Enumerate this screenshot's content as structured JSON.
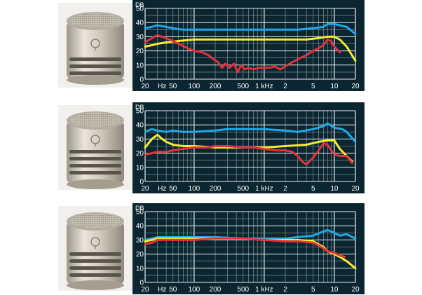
{
  "colors": {
    "panel_bg": "#0b2630",
    "grid": "#8fa1a8",
    "grid_major": "#e9eef0",
    "blue": "#1fa9e9",
    "yellow": "#f4ec2a",
    "red": "#e4323a"
  },
  "icons": {
    "mic_capsule": "microphone-capsule-icon"
  },
  "chart_data": [
    {
      "type": "line",
      "xscale": "log",
      "xlim": [
        20,
        20000
      ],
      "ylim": [
        0,
        50
      ],
      "ylabel": "DB",
      "y_ticks": [
        "0",
        "10",
        "20",
        "30",
        "40",
        "50"
      ],
      "x_ticks": [
        {
          "v": 20,
          "t": "20"
        },
        {
          "v": 35,
          "t": "Hz"
        },
        {
          "v": 50,
          "t": "50"
        },
        {
          "v": 100,
          "t": "100"
        },
        {
          "v": 200,
          "t": "200"
        },
        {
          "v": 500,
          "t": "500"
        },
        {
          "v": 1000,
          "t": "1 kHz"
        },
        {
          "v": 2000,
          "t": "2"
        },
        {
          "v": 5000,
          "t": "5"
        },
        {
          "v": 10000,
          "t": "10"
        },
        {
          "v": 20000,
          "t": "20"
        }
      ],
      "grid": true,
      "series": [
        {
          "color": "blue",
          "x": [
            20,
            25,
            30,
            40,
            50,
            70,
            100,
            200,
            500,
            1000,
            2000,
            3000,
            5000,
            7000,
            8000,
            10000,
            12000,
            15000,
            20000
          ],
          "y": [
            36,
            37,
            38,
            37,
            36,
            35,
            35,
            35,
            35,
            35,
            35,
            35,
            36,
            37,
            39,
            39,
            38,
            37,
            32
          ]
        },
        {
          "color": "yellow",
          "x": [
            20,
            25,
            30,
            40,
            60,
            100,
            200,
            500,
            1000,
            2000,
            4000,
            6000,
            8000,
            10000,
            12000,
            15000,
            20000
          ],
          "y": [
            23,
            24,
            25,
            26,
            27,
            28,
            28,
            28,
            28,
            28,
            28,
            29,
            30,
            30,
            28,
            23,
            13
          ]
        },
        {
          "color": "red",
          "x": [
            20,
            25,
            30,
            35,
            45,
            60,
            80,
            100,
            130,
            160,
            190,
            220,
            250,
            280,
            320,
            370,
            420,
            470,
            520,
            600,
            700,
            850,
            1000,
            1200,
            1400,
            1700,
            2000,
            2500,
            3000,
            4000,
            5000,
            6000,
            7000,
            8000,
            9000,
            10000,
            12000
          ],
          "y": [
            26,
            29,
            31,
            30,
            28,
            25,
            22,
            20,
            19,
            17,
            14,
            12,
            8,
            11,
            8,
            11,
            5,
            10,
            7,
            8,
            7,
            8,
            8,
            8,
            9,
            7,
            9,
            12,
            14,
            17,
            20,
            22,
            24,
            28,
            27,
            23,
            19
          ]
        }
      ]
    },
    {
      "type": "line",
      "xscale": "log",
      "xlim": [
        20,
        20000
      ],
      "ylim": [
        0,
        50
      ],
      "ylabel": "DB",
      "y_ticks": [
        "0",
        "10",
        "20",
        "30",
        "40",
        "50"
      ],
      "x_ticks": [
        {
          "v": 20,
          "t": "20"
        },
        {
          "v": 35,
          "t": "Hz"
        },
        {
          "v": 50,
          "t": "50"
        },
        {
          "v": 100,
          "t": "100"
        },
        {
          "v": 200,
          "t": "200"
        },
        {
          "v": 500,
          "t": "500"
        },
        {
          "v": 1000,
          "t": "1 kHz"
        },
        {
          "v": 2000,
          "t": "2"
        },
        {
          "v": 5000,
          "t": "5"
        },
        {
          "v": 10000,
          "t": "10"
        },
        {
          "v": 20000,
          "t": "20"
        }
      ],
      "grid": true,
      "series": [
        {
          "color": "blue",
          "x": [
            20,
            25,
            30,
            40,
            50,
            70,
            100,
            200,
            300,
            500,
            1000,
            2000,
            3000,
            5000,
            7000,
            8000,
            10000,
            13000,
            15000,
            20000
          ],
          "y": [
            35,
            37,
            36,
            35,
            36,
            35,
            35,
            36,
            37,
            37,
            37,
            36,
            35,
            37,
            39,
            41,
            38,
            37,
            35,
            28
          ]
        },
        {
          "color": "yellow",
          "x": [
            20,
            25,
            30,
            35,
            40,
            50,
            70,
            100,
            200,
            500,
            1000,
            2000,
            4000,
            6000,
            8000,
            10000,
            12000,
            15000,
            18000
          ],
          "y": [
            24,
            30,
            33,
            30,
            28,
            26,
            25,
            25,
            24,
            24,
            24,
            25,
            26,
            28,
            29,
            29,
            23,
            18,
            14
          ]
        },
        {
          "color": "red",
          "x": [
            20,
            25,
            30,
            40,
            50,
            70,
            100,
            150,
            200,
            300,
            500,
            700,
            1000,
            1500,
            2000,
            2500,
            3000,
            3500,
            4000,
            5000,
            6000,
            7000,
            8000,
            9000,
            10000,
            12000,
            15000,
            18000
          ],
          "y": [
            19,
            20,
            21,
            21,
            22,
            23,
            24,
            24,
            25,
            25,
            24,
            24,
            23,
            22,
            22,
            21,
            18,
            14,
            12,
            17,
            22,
            27,
            26,
            22,
            19,
            18,
            18,
            13
          ]
        }
      ]
    },
    {
      "type": "line",
      "xscale": "log",
      "xlim": [
        20,
        20000
      ],
      "ylim": [
        0,
        50
      ],
      "ylabel": "DB",
      "y_ticks": [
        "0",
        "10",
        "20",
        "30",
        "40",
        "50"
      ],
      "x_ticks": [
        {
          "v": 20,
          "t": "20"
        },
        {
          "v": 35,
          "t": "Hz"
        },
        {
          "v": 50,
          "t": "50"
        },
        {
          "v": 100,
          "t": "100"
        },
        {
          "v": 200,
          "t": "200"
        },
        {
          "v": 500,
          "t": "500"
        },
        {
          "v": 1000,
          "t": "1 kHz"
        },
        {
          "v": 2000,
          "t": "2"
        },
        {
          "v": 5000,
          "t": "5"
        },
        {
          "v": 10000,
          "t": "10"
        },
        {
          "v": 20000,
          "t": "20"
        }
      ],
      "grid": true,
      "series": [
        {
          "color": "blue",
          "x": [
            20,
            25,
            30,
            50,
            100,
            200,
            500,
            1000,
            2000,
            3000,
            5000,
            7000,
            8000,
            10000,
            12000,
            15000,
            20000
          ],
          "y": [
            30,
            31,
            32,
            32,
            32,
            32,
            31,
            31,
            31,
            32,
            33,
            36,
            37,
            35,
            33,
            34,
            31
          ]
        },
        {
          "color": "yellow",
          "x": [
            20,
            25,
            30,
            50,
            100,
            200,
            500,
            1000,
            2000,
            3000,
            5000,
            7000,
            8000,
            10000,
            12000,
            15000,
            20000
          ],
          "y": [
            29,
            30,
            31,
            31,
            31,
            31,
            31,
            30,
            30,
            30,
            29,
            25,
            22,
            20,
            18,
            15,
            10
          ]
        },
        {
          "color": "red",
          "x": [
            20,
            25,
            30,
            50,
            100,
            200,
            500,
            1000,
            2000,
            3000,
            5000,
            6000,
            7000,
            8000,
            10000,
            12000,
            14000
          ],
          "y": [
            27,
            28,
            30,
            30,
            30,
            31,
            31,
            30,
            29,
            29,
            28,
            26,
            24,
            22,
            21,
            19,
            18
          ]
        }
      ]
    }
  ]
}
